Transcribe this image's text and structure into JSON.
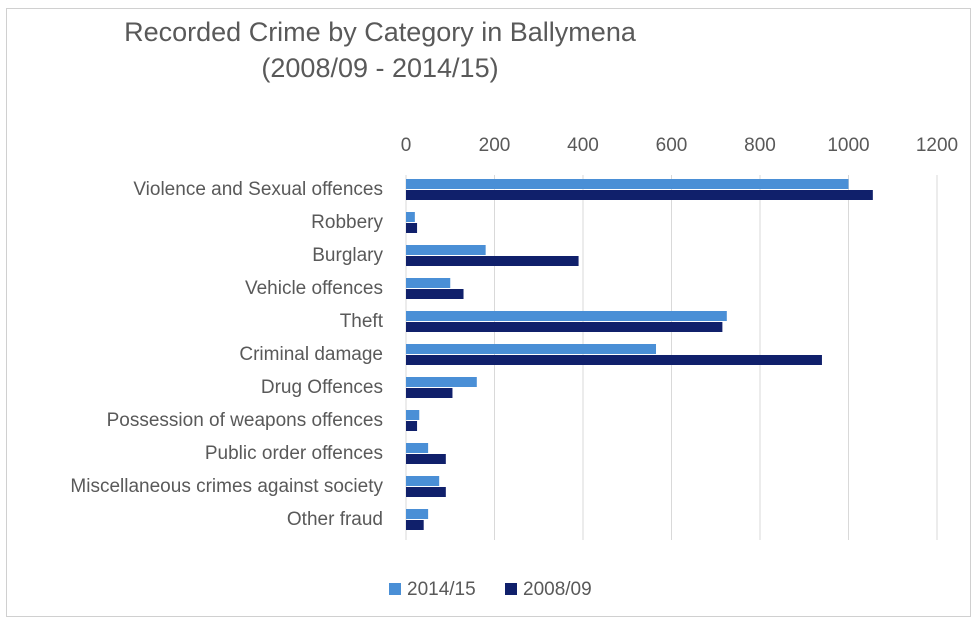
{
  "chart_data": {
    "type": "bar",
    "orientation": "horizontal",
    "title": "Recorded Crime by Category in Ballymena",
    "subtitle": "(2008/09 - 2014/15)",
    "categories": [
      "Violence and Sexual offences",
      "Robbery",
      "Burglary",
      "Vehicle offences",
      "Theft",
      "Criminal damage",
      "Drug Offences",
      "Possession of weapons offences",
      "Public order offences",
      "Miscellaneous crimes against society",
      "Other fraud"
    ],
    "series": [
      {
        "name": "2014/15",
        "color": "#4a8fd6",
        "values": [
          1000,
          20,
          180,
          100,
          725,
          565,
          160,
          30,
          50,
          75,
          50
        ]
      },
      {
        "name": "2008/09",
        "color": "#10206b",
        "values": [
          1055,
          25,
          390,
          130,
          715,
          940,
          105,
          25,
          90,
          90,
          40
        ]
      }
    ],
    "xlim": [
      0,
      1200
    ],
    "ticks": [
      0,
      200,
      400,
      600,
      800,
      1000,
      1200
    ],
    "xaxis_position": "top",
    "grid": true,
    "legend": "bottom"
  }
}
